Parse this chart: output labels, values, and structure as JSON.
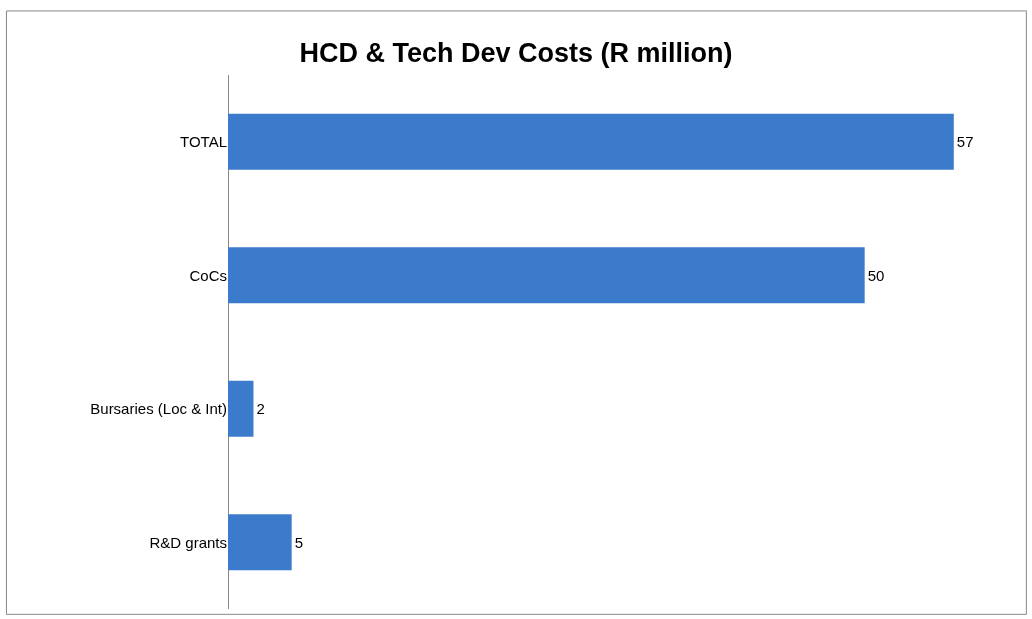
{
  "chart_data": {
    "type": "bar",
    "title": "HCD & Tech Dev Costs (R million)",
    "orientation": "horizontal",
    "categories": [
      "TOTAL",
      "CoCs",
      "Bursaries (Loc & Int)",
      "R&D grants"
    ],
    "values": [
      57,
      50,
      2,
      5
    ],
    "color": "#3c7bcb",
    "data_labels": true
  }
}
